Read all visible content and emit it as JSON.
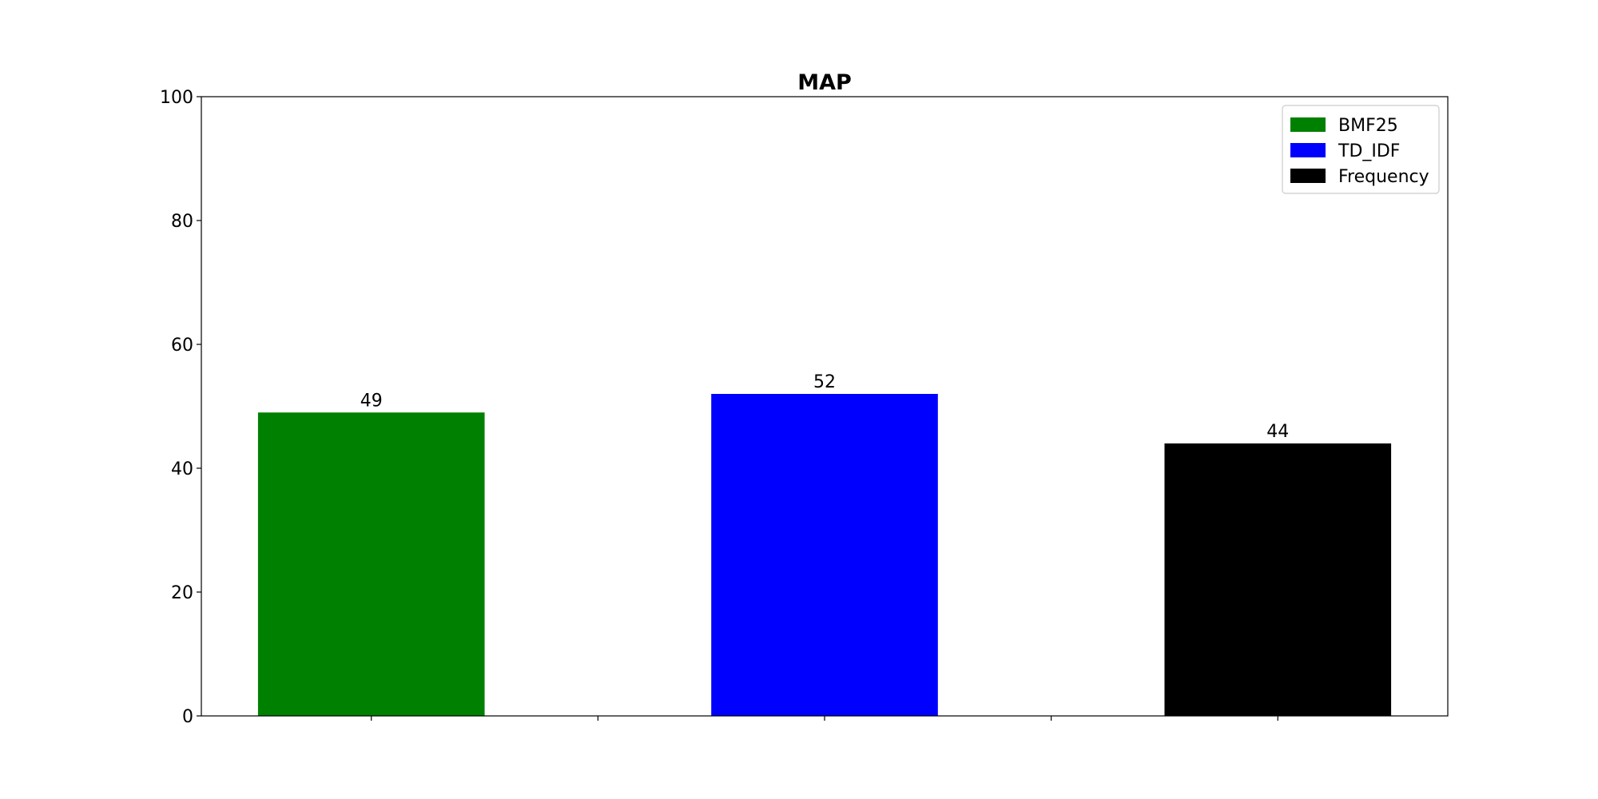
{
  "chart_data": {
    "type": "bar",
    "title": "MAP",
    "xlabel": "",
    "ylabel": "",
    "ylim": [
      0,
      100
    ],
    "yticks": [
      0,
      20,
      40,
      60,
      80,
      100
    ],
    "xticks": [
      0,
      0.5,
      1,
      1.5,
      2
    ],
    "xlim": [
      -0.375,
      2.375
    ],
    "bar_width": 0.5,
    "grid": false,
    "legend_position": "upper-right",
    "series": [
      {
        "name": "BMF25",
        "x": 0,
        "value": 49,
        "color": "#008000"
      },
      {
        "name": "TD_IDF",
        "x": 1,
        "value": 52,
        "color": "#0000ff"
      },
      {
        "name": "Frequency",
        "x": 2,
        "value": 44,
        "color": "#000000"
      }
    ]
  }
}
